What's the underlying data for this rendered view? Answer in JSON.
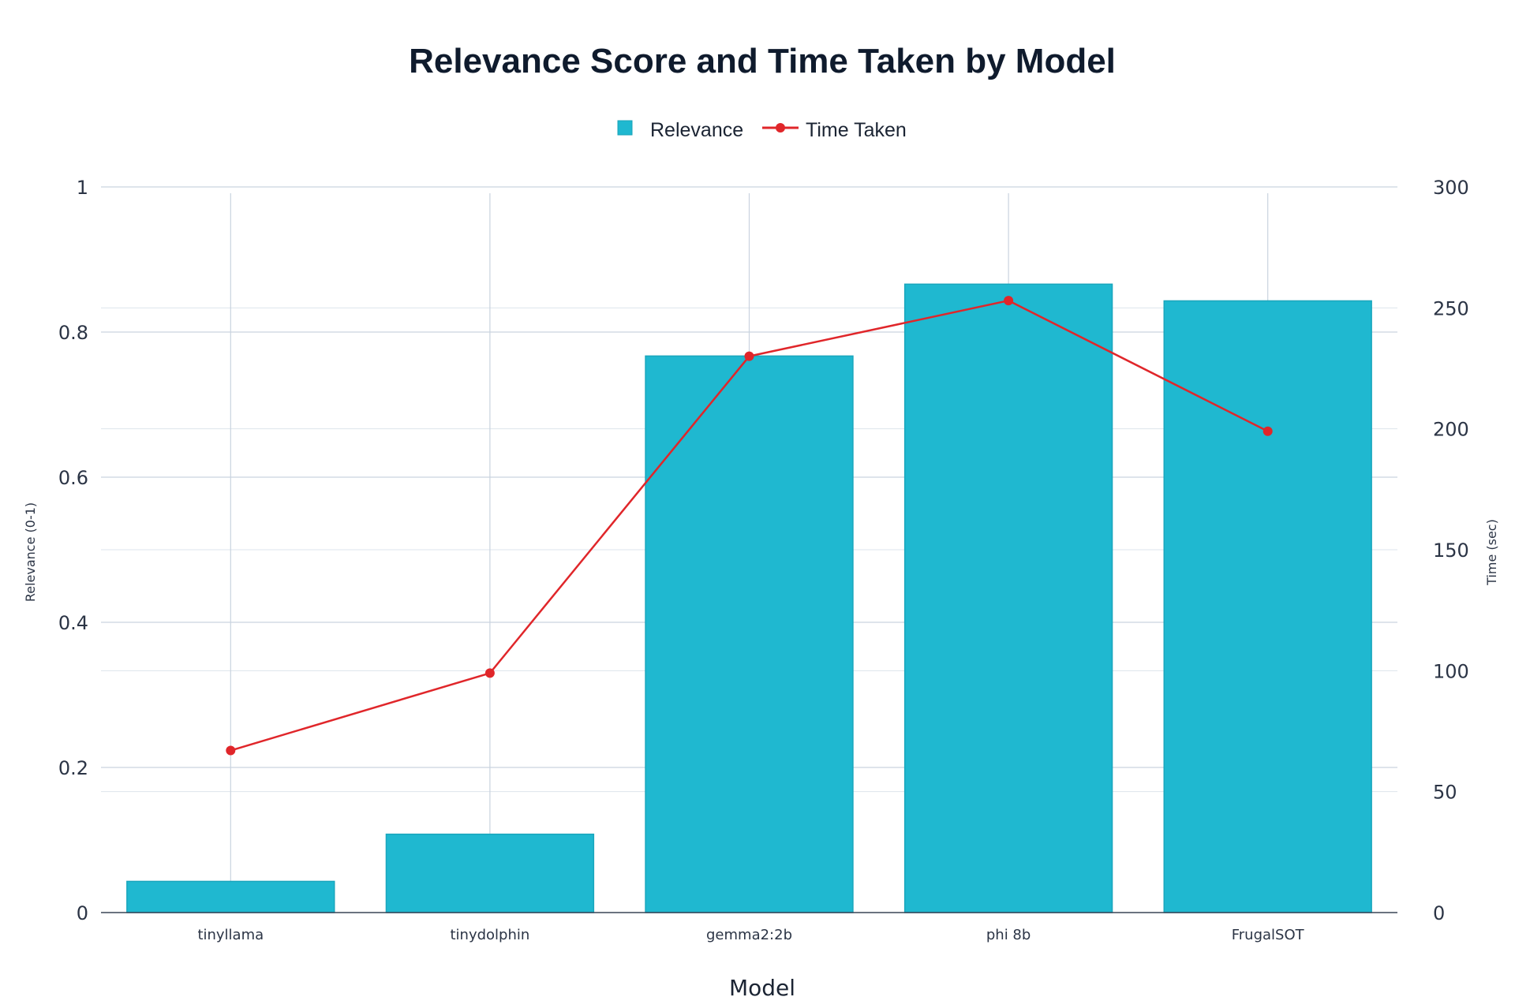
{
  "chart_data": {
    "type": "bar",
    "title": "Relevance Score and Time Taken by Model",
    "categories": [
      "tinyllama",
      "tinydolphin",
      "gemma2:2b",
      "phi 8b",
      "FrugalSOT"
    ],
    "series": [
      {
        "name": "Relevance",
        "type": "bar",
        "axis": "left",
        "color": "#1fb8d0",
        "values": [
          0.043,
          0.108,
          0.767,
          0.866,
          0.843
        ]
      },
      {
        "name": "Time Taken",
        "type": "line",
        "axis": "right",
        "color": "#e0262a",
        "values": [
          67,
          99,
          230,
          253,
          199
        ]
      }
    ],
    "xlabel": "Model",
    "ylabel": "Relevance (0-1)",
    "y2label": "Time (sec)",
    "ylim": [
      0,
      1
    ],
    "y2lim": [
      0,
      300
    ],
    "yticks": [
      "0",
      "0.2",
      "0.4",
      "0.6",
      "0.8",
      "1"
    ],
    "y2ticks": [
      "0",
      "50",
      "100",
      "150",
      "200",
      "250",
      "300"
    ],
    "grid": true,
    "legend_position": "top-center"
  }
}
